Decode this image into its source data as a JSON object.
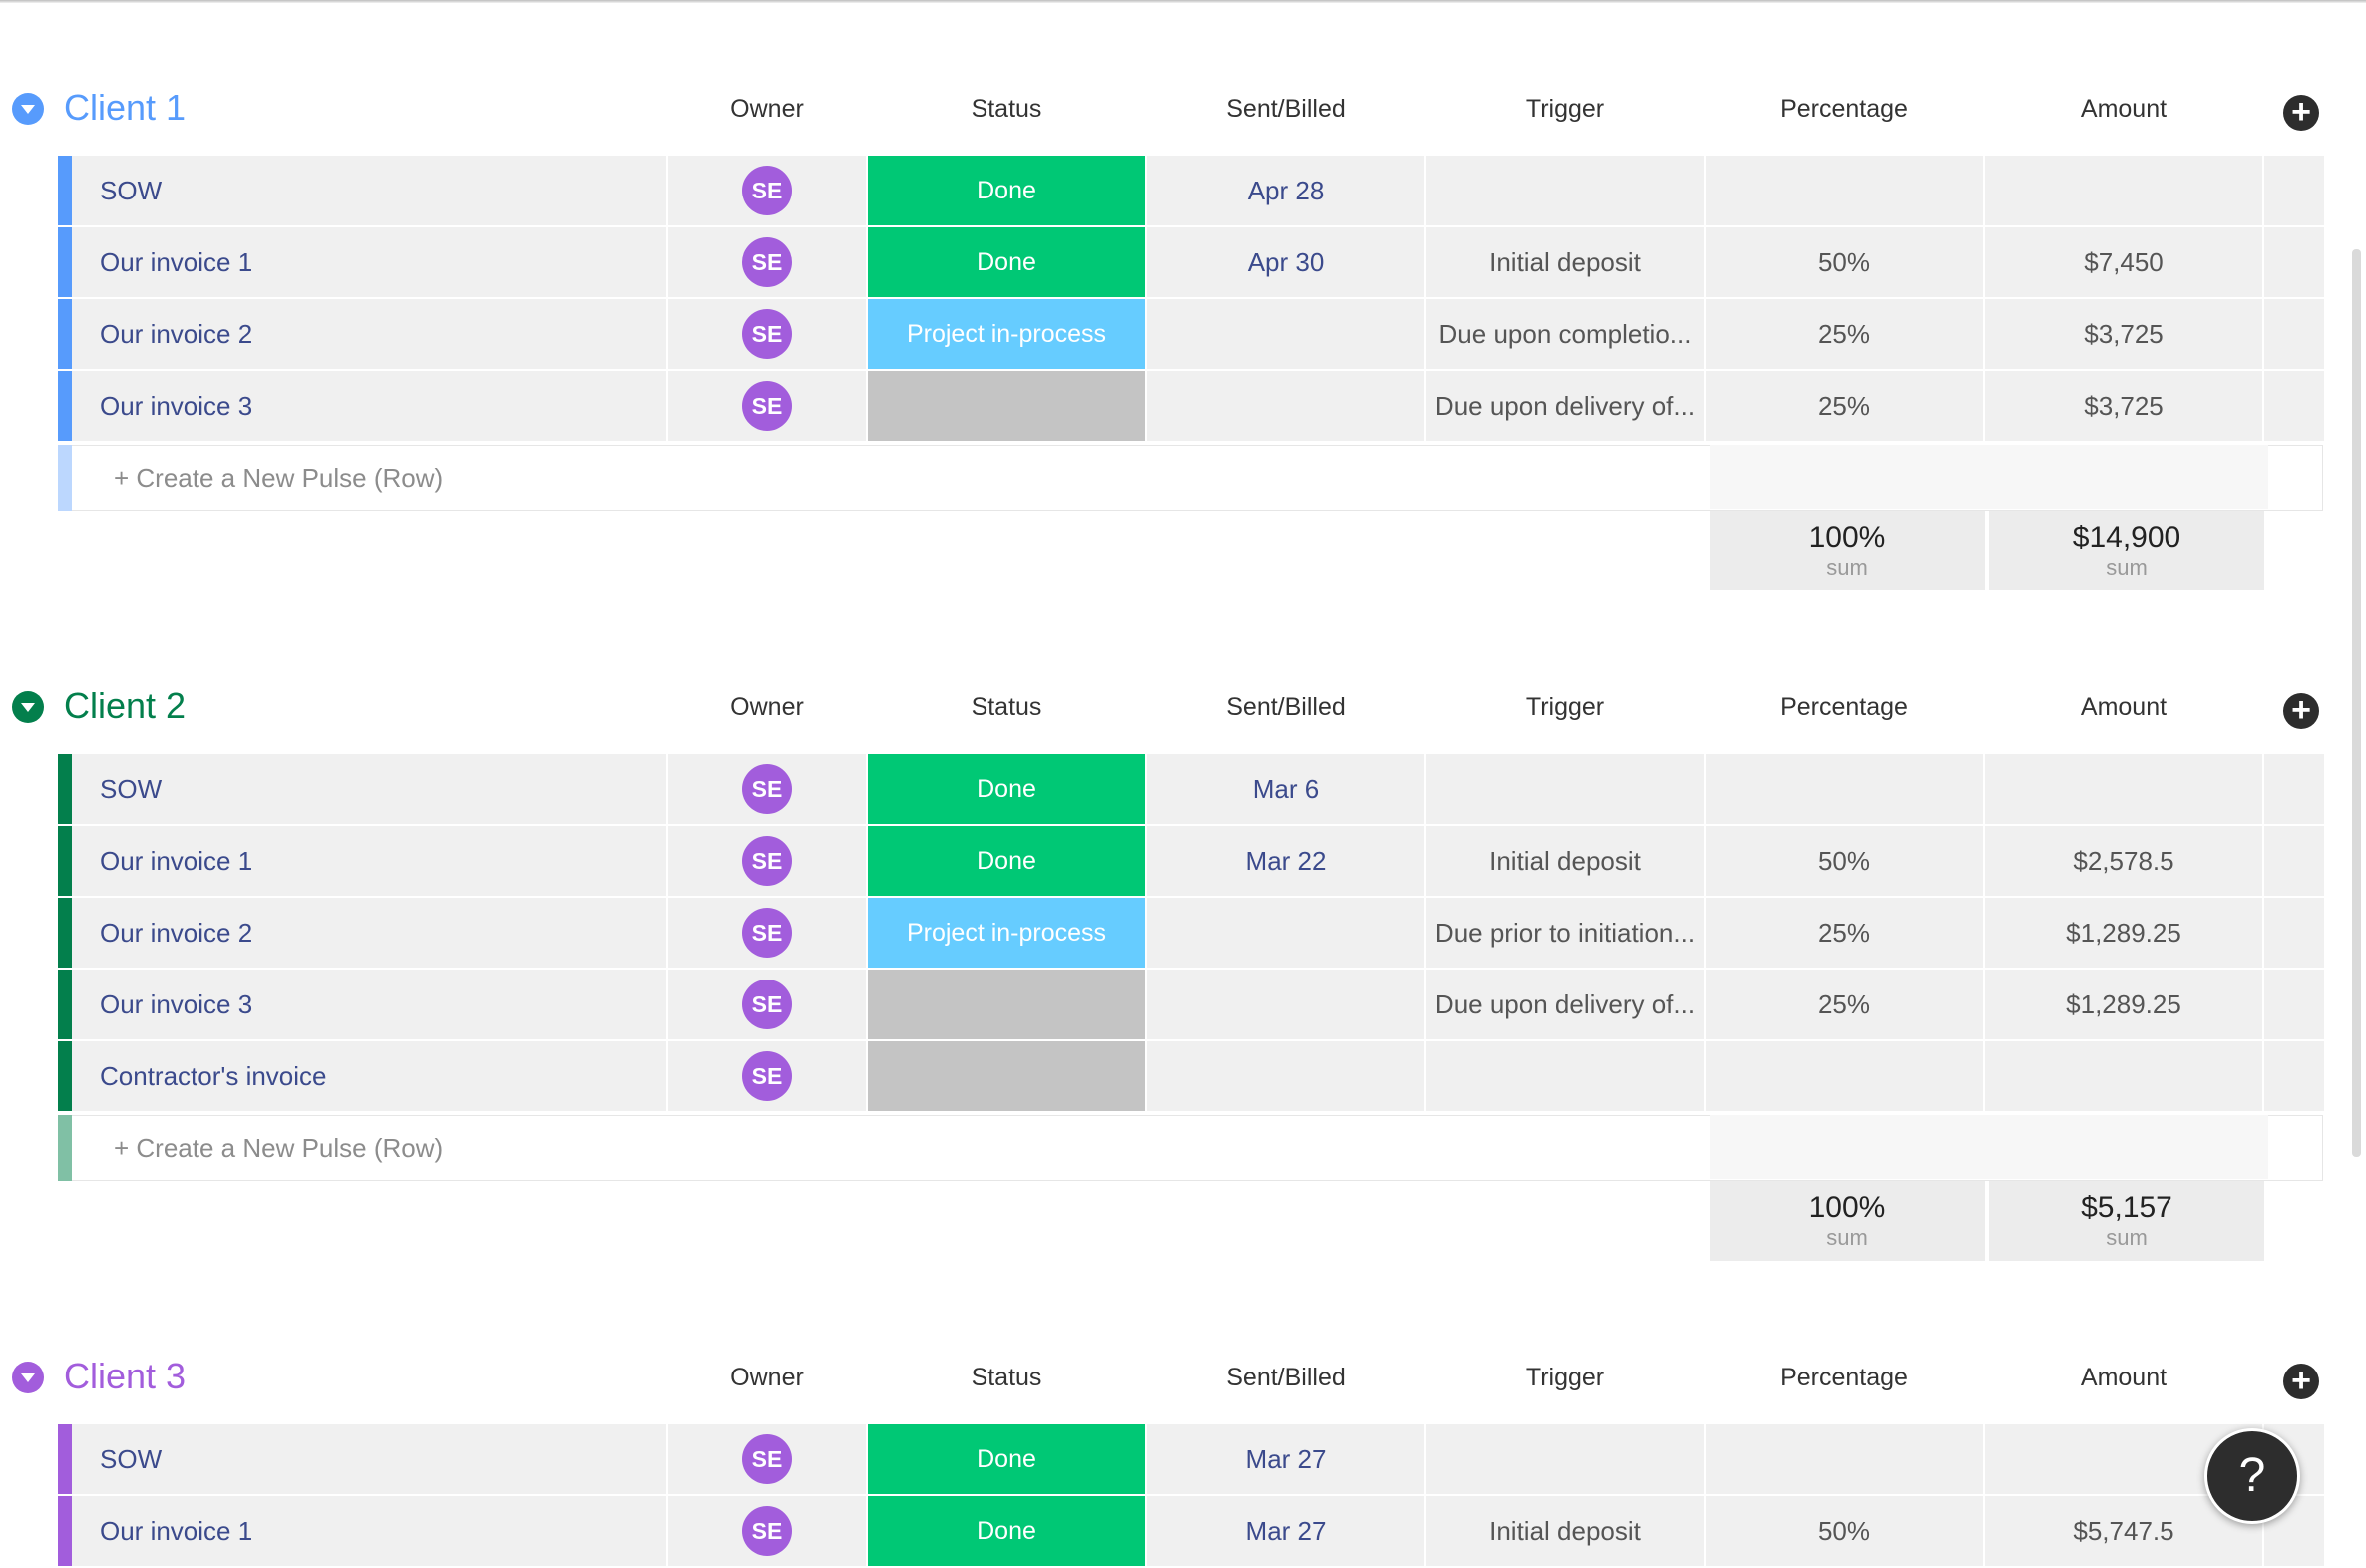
{
  "columns": {
    "owner": "Owner",
    "status": "Status",
    "sent": "Sent/Billed",
    "trigger": "Trigger",
    "percentage": "Percentage",
    "amount": "Amount"
  },
  "new_row_label": "+ Create a New Pulse (Row)",
  "sum_label": "sum",
  "add_column_icon": "plus-circle-icon",
  "help_label": "?",
  "colors": {
    "done": "#00c875",
    "in_process": "#66ccff",
    "empty": "#c4c4c4",
    "avatar": "#a25ddc"
  },
  "groups": [
    {
      "title": "Client 1",
      "color": "#579bfc",
      "rows": [
        {
          "name": "SOW",
          "owner": "SE",
          "status": "Done",
          "sent": "Apr 28",
          "trigger": "",
          "percentage": "",
          "amount": ""
        },
        {
          "name": "Our invoice 1",
          "owner": "SE",
          "status": "Done",
          "sent": "Apr 30",
          "trigger": "Initial deposit",
          "percentage": "50%",
          "amount": "$7,450"
        },
        {
          "name": "Our invoice 2",
          "owner": "SE",
          "status": "Project in-process",
          "sent": "",
          "trigger": "Due upon completio...",
          "percentage": "25%",
          "amount": "$3,725"
        },
        {
          "name": "Our invoice 3",
          "owner": "SE",
          "status": "",
          "sent": "",
          "trigger": "Due upon delivery of...",
          "percentage": "25%",
          "amount": "$3,725"
        }
      ],
      "sum_percentage": "100%",
      "sum_amount": "$14,900"
    },
    {
      "title": "Client 2",
      "color": "#037f4c",
      "rows": [
        {
          "name": "SOW",
          "owner": "SE",
          "status": "Done",
          "sent": "Mar 6",
          "trigger": "",
          "percentage": "",
          "amount": ""
        },
        {
          "name": "Our invoice 1",
          "owner": "SE",
          "status": "Done",
          "sent": "Mar 22",
          "trigger": "Initial deposit",
          "percentage": "50%",
          "amount": "$2,578.5"
        },
        {
          "name": "Our invoice 2",
          "owner": "SE",
          "status": "Project in-process",
          "sent": "",
          "trigger": "Due prior to initiation...",
          "percentage": "25%",
          "amount": "$1,289.25"
        },
        {
          "name": "Our invoice 3",
          "owner": "SE",
          "status": "",
          "sent": "",
          "trigger": "Due upon delivery of...",
          "percentage": "25%",
          "amount": "$1,289.25"
        },
        {
          "name": "Contractor's invoice",
          "owner": "SE",
          "status": "",
          "sent": "",
          "trigger": "",
          "percentage": "",
          "amount": ""
        }
      ],
      "sum_percentage": "100%",
      "sum_amount": "$5,157"
    },
    {
      "title": "Client 3",
      "color": "#a25ddc",
      "rows": [
        {
          "name": "SOW",
          "owner": "SE",
          "status": "Done",
          "sent": "Mar 27",
          "trigger": "",
          "percentage": "",
          "amount": ""
        },
        {
          "name": "Our invoice 1",
          "owner": "SE",
          "status": "Done",
          "sent": "Mar 27",
          "trigger": "Initial deposit",
          "percentage": "50%",
          "amount": "$5,747.5"
        }
      ]
    }
  ]
}
